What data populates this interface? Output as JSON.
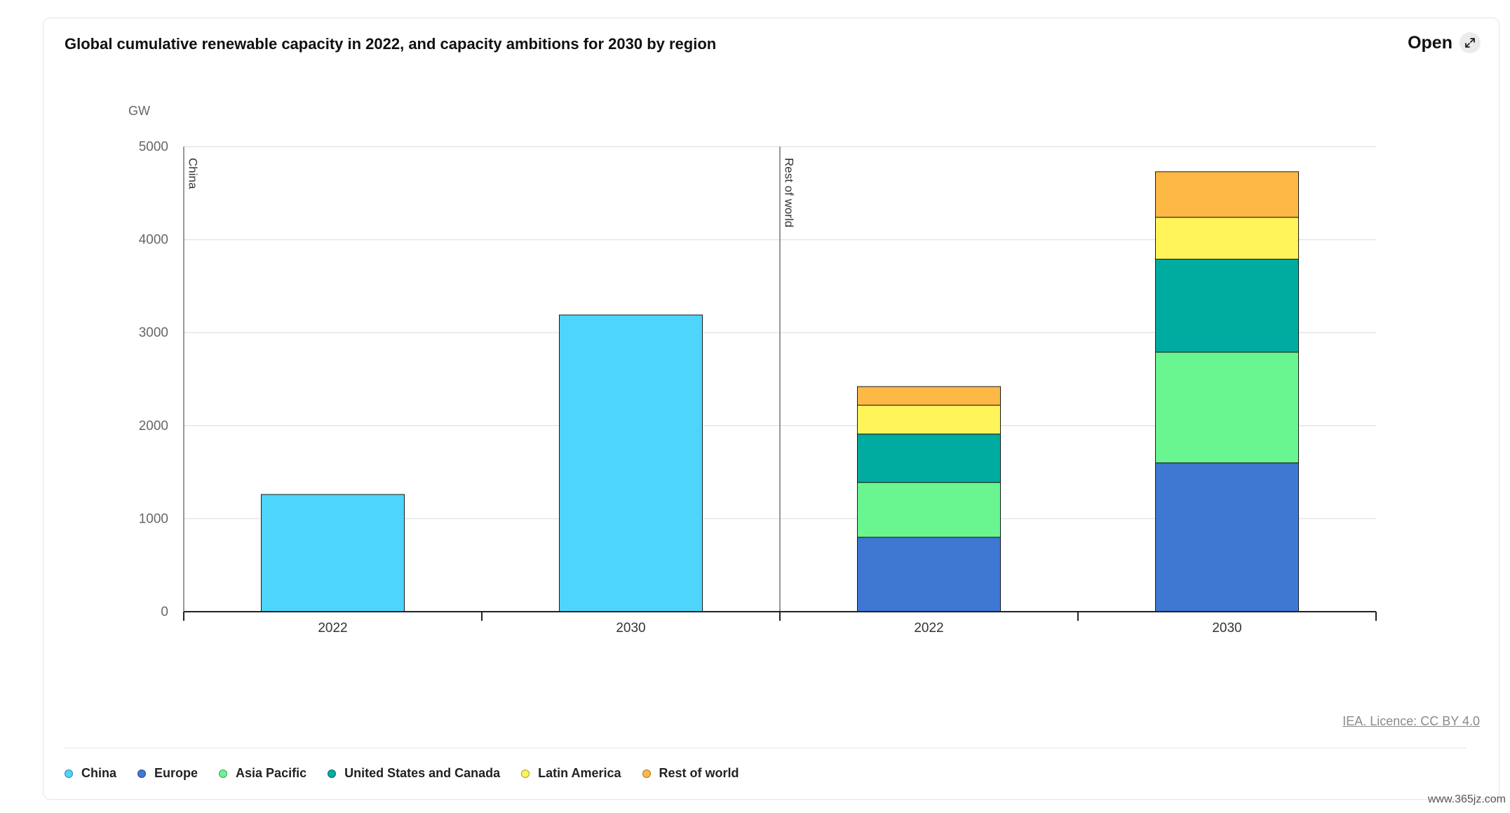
{
  "header": {
    "title": "Global cumulative renewable capacity in 2022, and capacity ambitions for 2030 by region",
    "open_label": "Open",
    "open_icon": "expand-icon"
  },
  "footer": {
    "licence": "IEA. Licence: CC BY 4.0",
    "watermark": "www.365jz.com"
  },
  "legend": [
    {
      "label": "China",
      "color": "#4dd5fb"
    },
    {
      "label": "Europe",
      "color": "#3f78d2"
    },
    {
      "label": "Asia Pacific",
      "color": "#69f590"
    },
    {
      "label": "United States and Canada",
      "color": "#00aba0"
    },
    {
      "label": "Latin America",
      "color": "#fff459"
    },
    {
      "label": "Rest of world",
      "color": "#fdb845"
    }
  ],
  "chart_data": {
    "type": "bar",
    "stacked": true,
    "ylabel": "GW",
    "ylim": [
      0,
      5000
    ],
    "yticks": [
      0,
      1000,
      2000,
      3000,
      4000,
      5000
    ],
    "grid": true,
    "legend_position": "bottom",
    "groups": [
      {
        "name": "China",
        "categories": [
          "2022",
          "2030"
        ],
        "series": [
          {
            "name": "China",
            "color": "#4dd5fb",
            "values": [
              1260,
              3190
            ]
          }
        ]
      },
      {
        "name": "Rest of world",
        "categories": [
          "2022",
          "2030"
        ],
        "series": [
          {
            "name": "Europe",
            "color": "#3f78d2",
            "values": [
              800,
              1600
            ]
          },
          {
            "name": "Asia Pacific",
            "color": "#69f590",
            "values": [
              590,
              1190
            ]
          },
          {
            "name": "United States and Canada",
            "color": "#00aba0",
            "values": [
              520,
              1000
            ]
          },
          {
            "name": "Latin America",
            "color": "#fff459",
            "values": [
              310,
              450
            ]
          },
          {
            "name": "Rest of world",
            "color": "#fdb845",
            "values": [
              200,
              490
            ]
          }
        ]
      }
    ]
  }
}
